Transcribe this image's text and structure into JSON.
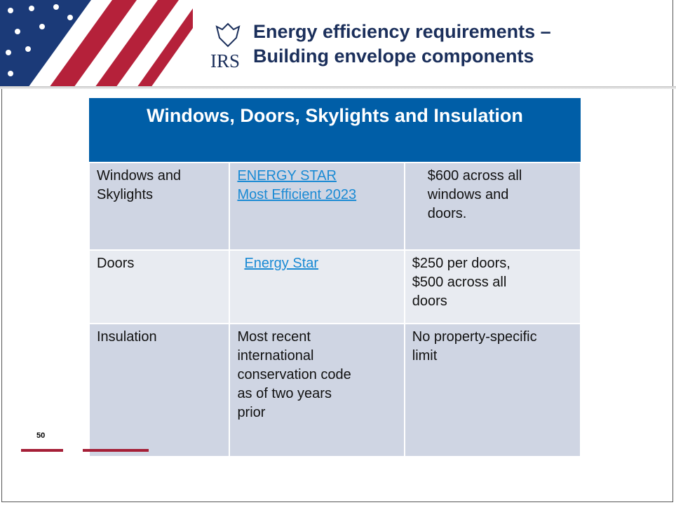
{
  "header": {
    "logo": "IRS",
    "title_lines": [
      "Energy efficiency requirements –",
      "Building envelope components"
    ]
  },
  "table": {
    "title": "Windows, Doors, Skylights and Insulation",
    "rows": [
      [
        [
          "Windows and",
          "Skylights"
        ],
        [
          "ENERGY STAR",
          "Most Efficient 2023"
        ],
        [
          "$600 across all",
          "windows and",
          "doors."
        ]
      ],
      [
        [
          "Doors"
        ],
        [
          "Energy Star"
        ],
        [
          "$250 per doors,",
          "$500 across all",
          "doors"
        ]
      ],
      [
        [
          "Insulation"
        ],
        [
          "Most recent",
          "international",
          "conservation code",
          "as of two years",
          "prior"
        ],
        [
          "No property-specific",
          "limit"
        ]
      ]
    ]
  },
  "footer": {
    "page_number": "50"
  }
}
